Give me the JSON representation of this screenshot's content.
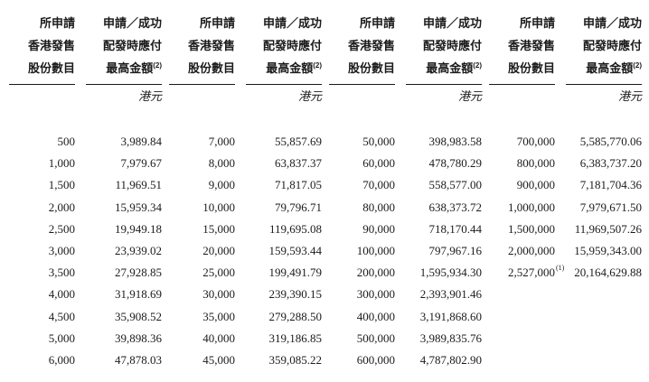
{
  "table": {
    "headers": {
      "shares_lines": [
        "所申請",
        "香港發售",
        "股份數目"
      ],
      "amount_lines": [
        "申請／成功",
        "配發時應付"
      ],
      "amount_line3": "最高金額",
      "amount_line3_sup": "(2)",
      "currency": "港元"
    },
    "groups": [
      {
        "rows": [
          {
            "shares": "500",
            "amount": "3,989.84"
          },
          {
            "shares": "1,000",
            "amount": "7,979.67"
          },
          {
            "shares": "1,500",
            "amount": "11,969.51"
          },
          {
            "shares": "2,000",
            "amount": "15,959.34"
          },
          {
            "shares": "2,500",
            "amount": "19,949.18"
          },
          {
            "shares": "3,000",
            "amount": "23,939.02"
          },
          {
            "shares": "3,500",
            "amount": "27,928.85"
          },
          {
            "shares": "4,000",
            "amount": "31,918.69"
          },
          {
            "shares": "4,500",
            "amount": "35,908.52"
          },
          {
            "shares": "5,000",
            "amount": "39,898.36"
          },
          {
            "shares": "6,000",
            "amount": "47,878.03"
          }
        ]
      },
      {
        "rows": [
          {
            "shares": "7,000",
            "amount": "55,857.69"
          },
          {
            "shares": "8,000",
            "amount": "63,837.37"
          },
          {
            "shares": "9,000",
            "amount": "71,817.05"
          },
          {
            "shares": "10,000",
            "amount": "79,796.71"
          },
          {
            "shares": "15,000",
            "amount": "119,695.08"
          },
          {
            "shares": "20,000",
            "amount": "159,593.44"
          },
          {
            "shares": "25,000",
            "amount": "199,491.79"
          },
          {
            "shares": "30,000",
            "amount": "239,390.15"
          },
          {
            "shares": "35,000",
            "amount": "279,288.50"
          },
          {
            "shares": "40,000",
            "amount": "319,186.85"
          },
          {
            "shares": "45,000",
            "amount": "359,085.22"
          }
        ]
      },
      {
        "rows": [
          {
            "shares": "50,000",
            "amount": "398,983.58"
          },
          {
            "shares": "60,000",
            "amount": "478,780.29"
          },
          {
            "shares": "70,000",
            "amount": "558,577.00"
          },
          {
            "shares": "80,000",
            "amount": "638,373.72"
          },
          {
            "shares": "90,000",
            "amount": "718,170.44"
          },
          {
            "shares": "100,000",
            "amount": "797,967.16"
          },
          {
            "shares": "200,000",
            "amount": "1,595,934.30"
          },
          {
            "shares": "300,000",
            "amount": "2,393,901.46"
          },
          {
            "shares": "400,000",
            "amount": "3,191,868.60"
          },
          {
            "shares": "500,000",
            "amount": "3,989,835.76"
          },
          {
            "shares": "600,000",
            "amount": "4,787,802.90"
          }
        ]
      },
      {
        "rows": [
          {
            "shares": "700,000",
            "amount": "5,585,770.06"
          },
          {
            "shares": "800,000",
            "amount": "6,383,737.20"
          },
          {
            "shares": "900,000",
            "amount": "7,181,704.36"
          },
          {
            "shares": "1,000,000",
            "amount": "7,979,671.50"
          },
          {
            "shares": "1,500,000",
            "amount": "11,969,507.26"
          },
          {
            "shares": "2,000,000",
            "amount": "15,959,343.00"
          },
          {
            "shares": "2,527,000",
            "shares_sup": "(1)",
            "amount": "20,164,629.88"
          }
        ]
      }
    ]
  }
}
